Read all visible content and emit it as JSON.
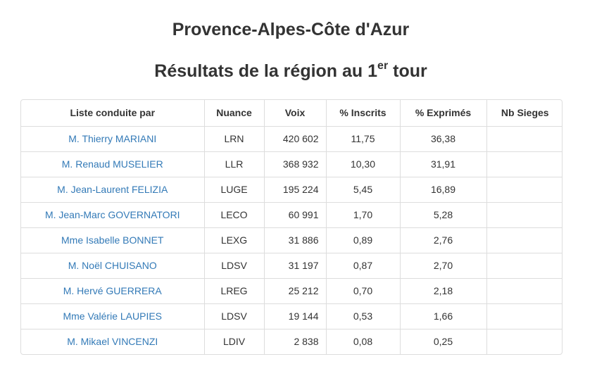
{
  "header": {
    "region": "Provence-Alpes-Côte d'Azur",
    "results_prefix": "Résultats de la région au 1",
    "results_sup": "er",
    "results_suffix": " tour"
  },
  "table": {
    "columns": [
      "Liste conduite par",
      "Nuance",
      "Voix",
      "% Inscrits",
      "% Exprimés",
      "Nb Sieges"
    ],
    "rows": [
      {
        "name": "M. Thierry MARIANI",
        "nuance": "LRN",
        "voix": "420 602",
        "inscrits": "11,75",
        "exprimes": "36,38",
        "sieges": ""
      },
      {
        "name": "M. Renaud MUSELIER",
        "nuance": "LLR",
        "voix": "368 932",
        "inscrits": "10,30",
        "exprimes": "31,91",
        "sieges": ""
      },
      {
        "name": "M. Jean-Laurent FELIZIA",
        "nuance": "LUGE",
        "voix": "195 224",
        "inscrits": "5,45",
        "exprimes": "16,89",
        "sieges": ""
      },
      {
        "name": "M. Jean-Marc GOVERNATORI",
        "nuance": "LECO",
        "voix": "60 991",
        "inscrits": "1,70",
        "exprimes": "5,28",
        "sieges": ""
      },
      {
        "name": "Mme Isabelle BONNET",
        "nuance": "LEXG",
        "voix": "31 886",
        "inscrits": "0,89",
        "exprimes": "2,76",
        "sieges": ""
      },
      {
        "name": "M. Noël CHUISANO",
        "nuance": "LDSV",
        "voix": "31 197",
        "inscrits": "0,87",
        "exprimes": "2,70",
        "sieges": ""
      },
      {
        "name": "M. Hervé GUERRERA",
        "nuance": "LREG",
        "voix": "25 212",
        "inscrits": "0,70",
        "exprimes": "2,18",
        "sieges": ""
      },
      {
        "name": "Mme Valérie LAUPIES",
        "nuance": "LDSV",
        "voix": "19 144",
        "inscrits": "0,53",
        "exprimes": "1,66",
        "sieges": ""
      },
      {
        "name": "M. Mikael VINCENZI",
        "nuance": "LDIV",
        "voix": "2 838",
        "inscrits": "0,08",
        "exprimes": "0,25",
        "sieges": ""
      }
    ]
  },
  "colors": {
    "link": "#337ab7",
    "text": "#333333",
    "border": "#dddddd"
  }
}
